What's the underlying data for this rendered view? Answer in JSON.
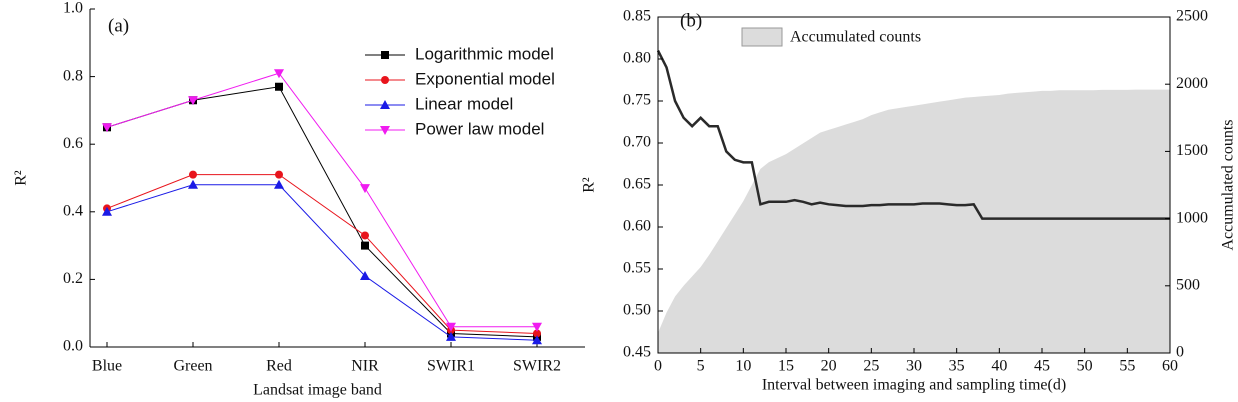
{
  "chart_data": [
    {
      "type": "line",
      "annotation": "(a)",
      "y_label": "R²",
      "x_label": "Landsat image band",
      "categories": [
        "Blue",
        "Green",
        "Red",
        "NIR",
        "SWIR1",
        "SWIR2"
      ],
      "ylim": [
        0,
        1
      ],
      "yticks": [
        {
          "value": 0,
          "label": "0.0"
        },
        0.2,
        0.4,
        0.6,
        0.8,
        {
          "value": 1,
          "label": "1.0"
        }
      ],
      "legend": "upper right",
      "series": [
        {
          "name": "Logarithmic model",
          "color": "#000000",
          "marker": "square",
          "values": [
            0.65,
            0.73,
            0.77,
            0.3,
            0.04,
            0.03
          ]
        },
        {
          "name": "Exponential model",
          "color": "#e8141c",
          "marker": "circle",
          "values": [
            0.41,
            0.51,
            0.51,
            0.33,
            0.05,
            0.04
          ]
        },
        {
          "name": "Linear model",
          "color": "#1a1ae6",
          "marker": "triangle-up",
          "values": [
            0.4,
            0.48,
            0.48,
            0.21,
            0.03,
            0.02
          ]
        },
        {
          "name": "Power law model",
          "color": "#f01cf0",
          "marker": "triangle-down",
          "values": [
            0.65,
            0.73,
            0.81,
            0.47,
            0.06,
            0.06
          ]
        }
      ]
    },
    {
      "type": "line-area",
      "annotation": "(b)",
      "y_label": "R²",
      "y2_label": "Accumulated counts",
      "x_label": "Interval between imaging and sampling time(d)",
      "x": [
        0,
        1,
        2,
        3,
        4,
        5,
        6,
        7,
        8,
        9,
        10,
        11,
        12,
        13,
        14,
        15,
        16,
        17,
        18,
        19,
        20,
        21,
        22,
        23,
        24,
        25,
        26,
        27,
        28,
        29,
        30,
        31,
        32,
        33,
        34,
        35,
        36,
        37,
        38,
        39,
        40,
        41,
        42,
        43,
        44,
        45,
        46,
        47,
        48,
        49,
        50,
        51,
        52,
        53,
        54,
        55,
        56,
        57,
        58,
        59,
        60
      ],
      "xlim": [
        0,
        60
      ],
      "xticks": [
        0,
        5,
        10,
        15,
        20,
        25,
        30,
        35,
        40,
        45,
        50,
        55,
        60
      ],
      "ylim": [
        0.45,
        0.85
      ],
      "yticks": [
        0.45,
        {
          "value": 0.5,
          "label": "0.50"
        },
        0.55,
        {
          "value": 0.6,
          "label": "0.60"
        },
        0.65,
        {
          "value": 0.7,
          "label": "0.70"
        },
        0.75,
        {
          "value": 0.8,
          "label": "0.80"
        },
        0.85
      ],
      "y2lim": [
        0,
        2500
      ],
      "y2ticks": [
        0,
        500,
        1000,
        1500,
        2000,
        2500
      ],
      "legend": "upper left",
      "series": [
        {
          "name": "Accumulated counts",
          "color": "#dcdcdc",
          "axis": "y2",
          "kind": "area",
          "values": [
            150,
            300,
            420,
            500,
            570,
            640,
            730,
            830,
            930,
            1030,
            1130,
            1250,
            1370,
            1420,
            1450,
            1480,
            1520,
            1560,
            1600,
            1640,
            1660,
            1680,
            1700,
            1720,
            1740,
            1770,
            1790,
            1810,
            1820,
            1830,
            1840,
            1850,
            1860,
            1870,
            1880,
            1890,
            1900,
            1905,
            1910,
            1915,
            1920,
            1930,
            1935,
            1940,
            1945,
            1950,
            1950,
            1955,
            1955,
            1955,
            1955,
            1955,
            1958,
            1958,
            1958,
            1958,
            1960,
            1960,
            1960,
            1960,
            1960
          ]
        },
        {
          "color": "#2a2a2a",
          "kind": "line",
          "values": [
            0.81,
            0.79,
            0.75,
            0.73,
            0.72,
            0.73,
            0.72,
            0.72,
            0.69,
            0.68,
            0.677,
            0.677,
            0.627,
            0.63,
            0.63,
            0.63,
            0.632,
            0.63,
            0.627,
            0.629,
            0.627,
            0.626,
            0.625,
            0.625,
            0.625,
            0.626,
            0.626,
            0.627,
            0.627,
            0.627,
            0.627,
            0.628,
            0.628,
            0.628,
            0.627,
            0.626,
            0.626,
            0.627,
            0.61,
            0.61,
            0.61,
            0.61,
            0.61,
            0.61,
            0.61,
            0.61,
            0.61,
            0.61,
            0.61,
            0.61,
            0.61,
            0.61,
            0.61,
            0.61,
            0.61,
            0.61,
            0.61,
            0.61,
            0.61,
            0.61,
            0.61
          ]
        }
      ]
    }
  ]
}
